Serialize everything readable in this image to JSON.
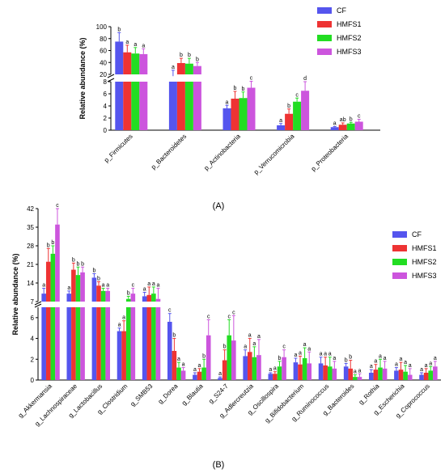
{
  "colors": {
    "CF": "#5555ee",
    "HMFS1": "#ee3333",
    "HMFS2": "#22dd22",
    "HMFS3": "#cc55dd"
  },
  "chart_data": [
    {
      "type": "bar",
      "panel_label": "(A)",
      "ylabel": "Relative abundance (%)",
      "axis_break": {
        "lower": [
          0,
          8
        ],
        "upper": [
          20,
          100
        ]
      },
      "lower_ticks": [
        0,
        2,
        4,
        6,
        8
      ],
      "upper_ticks": [
        20,
        40,
        60,
        80,
        100
      ],
      "legend": [
        "CF",
        "HMFS1",
        "HMFS2",
        "HMFS3"
      ],
      "categories": [
        "p_Firmicutes",
        "p_Bacteroidetes",
        "p_Actinobacteria",
        "p_Verrucomicrobia",
        "p_Proteobacteria"
      ],
      "series": [
        {
          "name": "CF",
          "values": [
            75,
            17,
            3.6,
            0.8,
            0.5
          ],
          "errors": [
            15,
            10,
            0.5,
            0.3,
            0.1
          ]
        },
        {
          "name": "HMFS1",
          "values": [
            57,
            39,
            5.2,
            2.7,
            0.9
          ],
          "errors": [
            12,
            8,
            1.2,
            0.8,
            0.3
          ]
        },
        {
          "name": "HMFS2",
          "values": [
            55,
            38,
            5.3,
            4.7,
            1.1
          ],
          "errors": [
            10,
            9,
            1.0,
            0.6,
            0.2
          ]
        },
        {
          "name": "HMFS3",
          "values": [
            54,
            34,
            7.0,
            6.5,
            1.4
          ],
          "errors": [
            9,
            6,
            1.5,
            1.5,
            0.4
          ]
        }
      ],
      "sig_letters": [
        [
          "b",
          "a",
          "a",
          "a"
        ],
        [
          "a",
          "b",
          "b",
          "b"
        ],
        [
          "a",
          "b",
          "b",
          "c"
        ],
        [
          "a",
          "b",
          "c",
          "d"
        ],
        [
          "a",
          "ab",
          "b",
          "c"
        ]
      ]
    },
    {
      "type": "bar",
      "panel_label": "(B)",
      "ylabel": "Relative abundance (%)",
      "axis_break": {
        "lower": [
          0,
          7
        ],
        "upper": [
          7,
          42
        ]
      },
      "lower_ticks": [
        0,
        2,
        4,
        6
      ],
      "upper_ticks": [
        7,
        14,
        21,
        28,
        35,
        42
      ],
      "legend": [
        "CF",
        "HMFS1",
        "HMFS2",
        "HMFS3"
      ],
      "categories": [
        "g_Akkermansia",
        "g_Lachnospiraceae",
        "g_Lactobacillus",
        "g_Clostridium",
        "g_SMB53",
        "g_Dorea",
        "g_Blautia",
        "g_S24-7",
        "g_Adlercreutzia",
        "g_Oscillospira",
        "g_Bifidobacterium",
        "g_Ruminococcus",
        "g_Bacteroides",
        "g_Rothia",
        "g_Escherichia",
        "g_Coprococcus"
      ],
      "series": [
        {
          "name": "CF",
          "values": [
            10,
            10,
            16,
            4.7,
            9,
            5.6,
            0.5,
            0.2,
            2.3,
            0.6,
            1.7,
            1.6,
            1.3,
            0.7,
            0.9,
            0.5
          ],
          "errors": [
            2,
            1,
            1.5,
            0.3,
            1.5,
            0.8,
            0.2,
            0.1,
            0.6,
            0.1,
            0.4,
            0.6,
            0.3,
            0.3,
            0.3,
            0.2
          ]
        },
        {
          "name": "HMFS1",
          "values": [
            22,
            19,
            13,
            4.7,
            9.5,
            2.8,
            0.8,
            1.9,
            2.7,
            0.6,
            1.5,
            1.4,
            1.1,
            1.0,
            1.0,
            0.7
          ],
          "errors": [
            5,
            2.5,
            1.5,
            1.0,
            3,
            1.2,
            0.3,
            1.0,
            1.3,
            0.2,
            0.8,
            0.8,
            0.8,
            0.5,
            0.7,
            0.4
          ]
        },
        {
          "name": "HMFS2",
          "values": [
            25,
            17,
            11,
            8,
            10,
            1.2,
            1.2,
            4.3,
            2.2,
            1.3,
            2.1,
            1.3,
            0.3,
            1.2,
            0.8,
            0.9
          ],
          "errors": [
            3,
            3,
            1,
            1,
            2.5,
            0.5,
            0.8,
            1.5,
            1.0,
            0.5,
            1.0,
            0.9,
            0.2,
            0.8,
            0.6,
            0.4
          ]
        },
        {
          "name": "HMFS3",
          "values": [
            36,
            18,
            11,
            10,
            8,
            0.9,
            4.3,
            3.8,
            2.4,
            2.2,
            1.6,
            1.1,
            0.3,
            1.1,
            0.5,
            1.3
          ],
          "errors": [
            6,
            2,
            1,
            2,
            4,
            0.3,
            1.5,
            2.4,
            1.5,
            0.7,
            1.1,
            0.7,
            0.3,
            0.7,
            0.6,
            0.5
          ]
        }
      ],
      "sig_letters": [
        [
          "a",
          "b",
          "b",
          "c"
        ],
        [
          "a",
          "b",
          "b",
          "b"
        ],
        [
          "b",
          "b",
          "a",
          "a"
        ],
        [
          "a",
          "a",
          "b",
          "c"
        ],
        [
          "a",
          "a",
          "a",
          "a"
        ],
        [
          "c",
          "b",
          "a",
          "a"
        ],
        [
          "a",
          "a",
          "b",
          "c"
        ],
        [
          "a",
          "b",
          "c",
          "c"
        ],
        [
          "a",
          "a",
          "a",
          "a"
        ],
        [
          "a",
          "a",
          "b",
          "c"
        ],
        [
          "a",
          "a",
          "a",
          "a"
        ],
        [
          "a",
          "a",
          "a",
          "a"
        ],
        [
          "b",
          "b",
          "a",
          "a"
        ],
        [
          "a",
          "a",
          "a",
          "a"
        ],
        [
          "a",
          "a",
          "a",
          "a"
        ],
        [
          "a",
          "a",
          "a",
          "a"
        ]
      ]
    }
  ]
}
